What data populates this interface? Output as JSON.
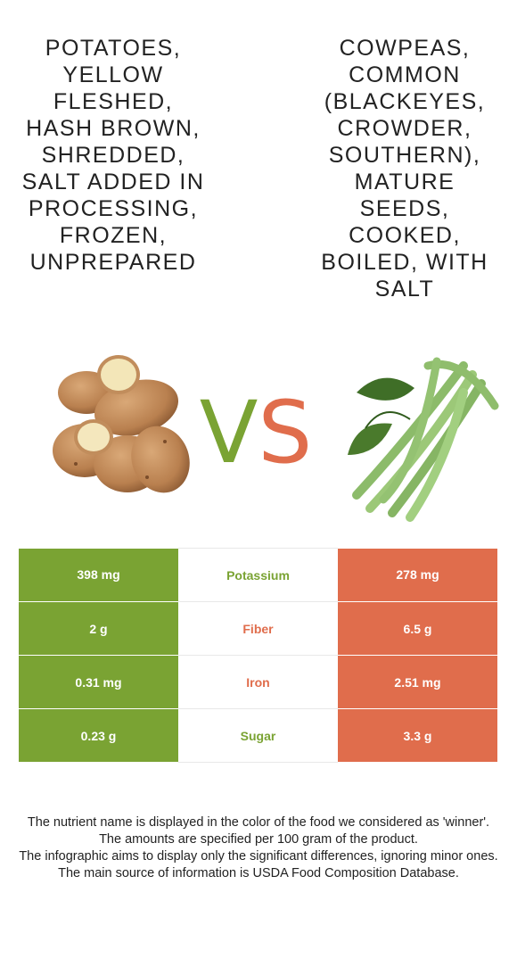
{
  "food_left": {
    "name": "Potatoes, yellow fleshed, hash brown, shredded, salt added in processing, frozen, unprepared",
    "image_icon": "potatoes-illustration",
    "color": "#7aa333"
  },
  "food_right": {
    "name": "Cowpeas, common (blackeyes, crowder, southern), mature seeds, cooked, boiled, with salt",
    "image_icon": "cowpeas-illustration",
    "color": "#e06d4c"
  },
  "vs": {
    "v": "V",
    "s": "S"
  },
  "rows": [
    {
      "nutrient": "Potassium",
      "left": "398 mg",
      "right": "278 mg",
      "winner_color": "#7aa333"
    },
    {
      "nutrient": "Fiber",
      "left": "2 g",
      "right": "6.5 g",
      "winner_color": "#e06d4c"
    },
    {
      "nutrient": "Iron",
      "left": "0.31 mg",
      "right": "2.51 mg",
      "winner_color": "#e06d4c"
    },
    {
      "nutrient": "Sugar",
      "left": "0.23 g",
      "right": "3.3 g",
      "winner_color": "#7aa333"
    }
  ],
  "footer": [
    "The nutrient name is displayed in the color of the food we considered as 'winner'.",
    "The amounts are specified per 100 gram of the product.",
    "The infographic aims to display only the significant differences, ignoring minor ones.",
    "The main source of information is USDA Food Composition Database."
  ]
}
